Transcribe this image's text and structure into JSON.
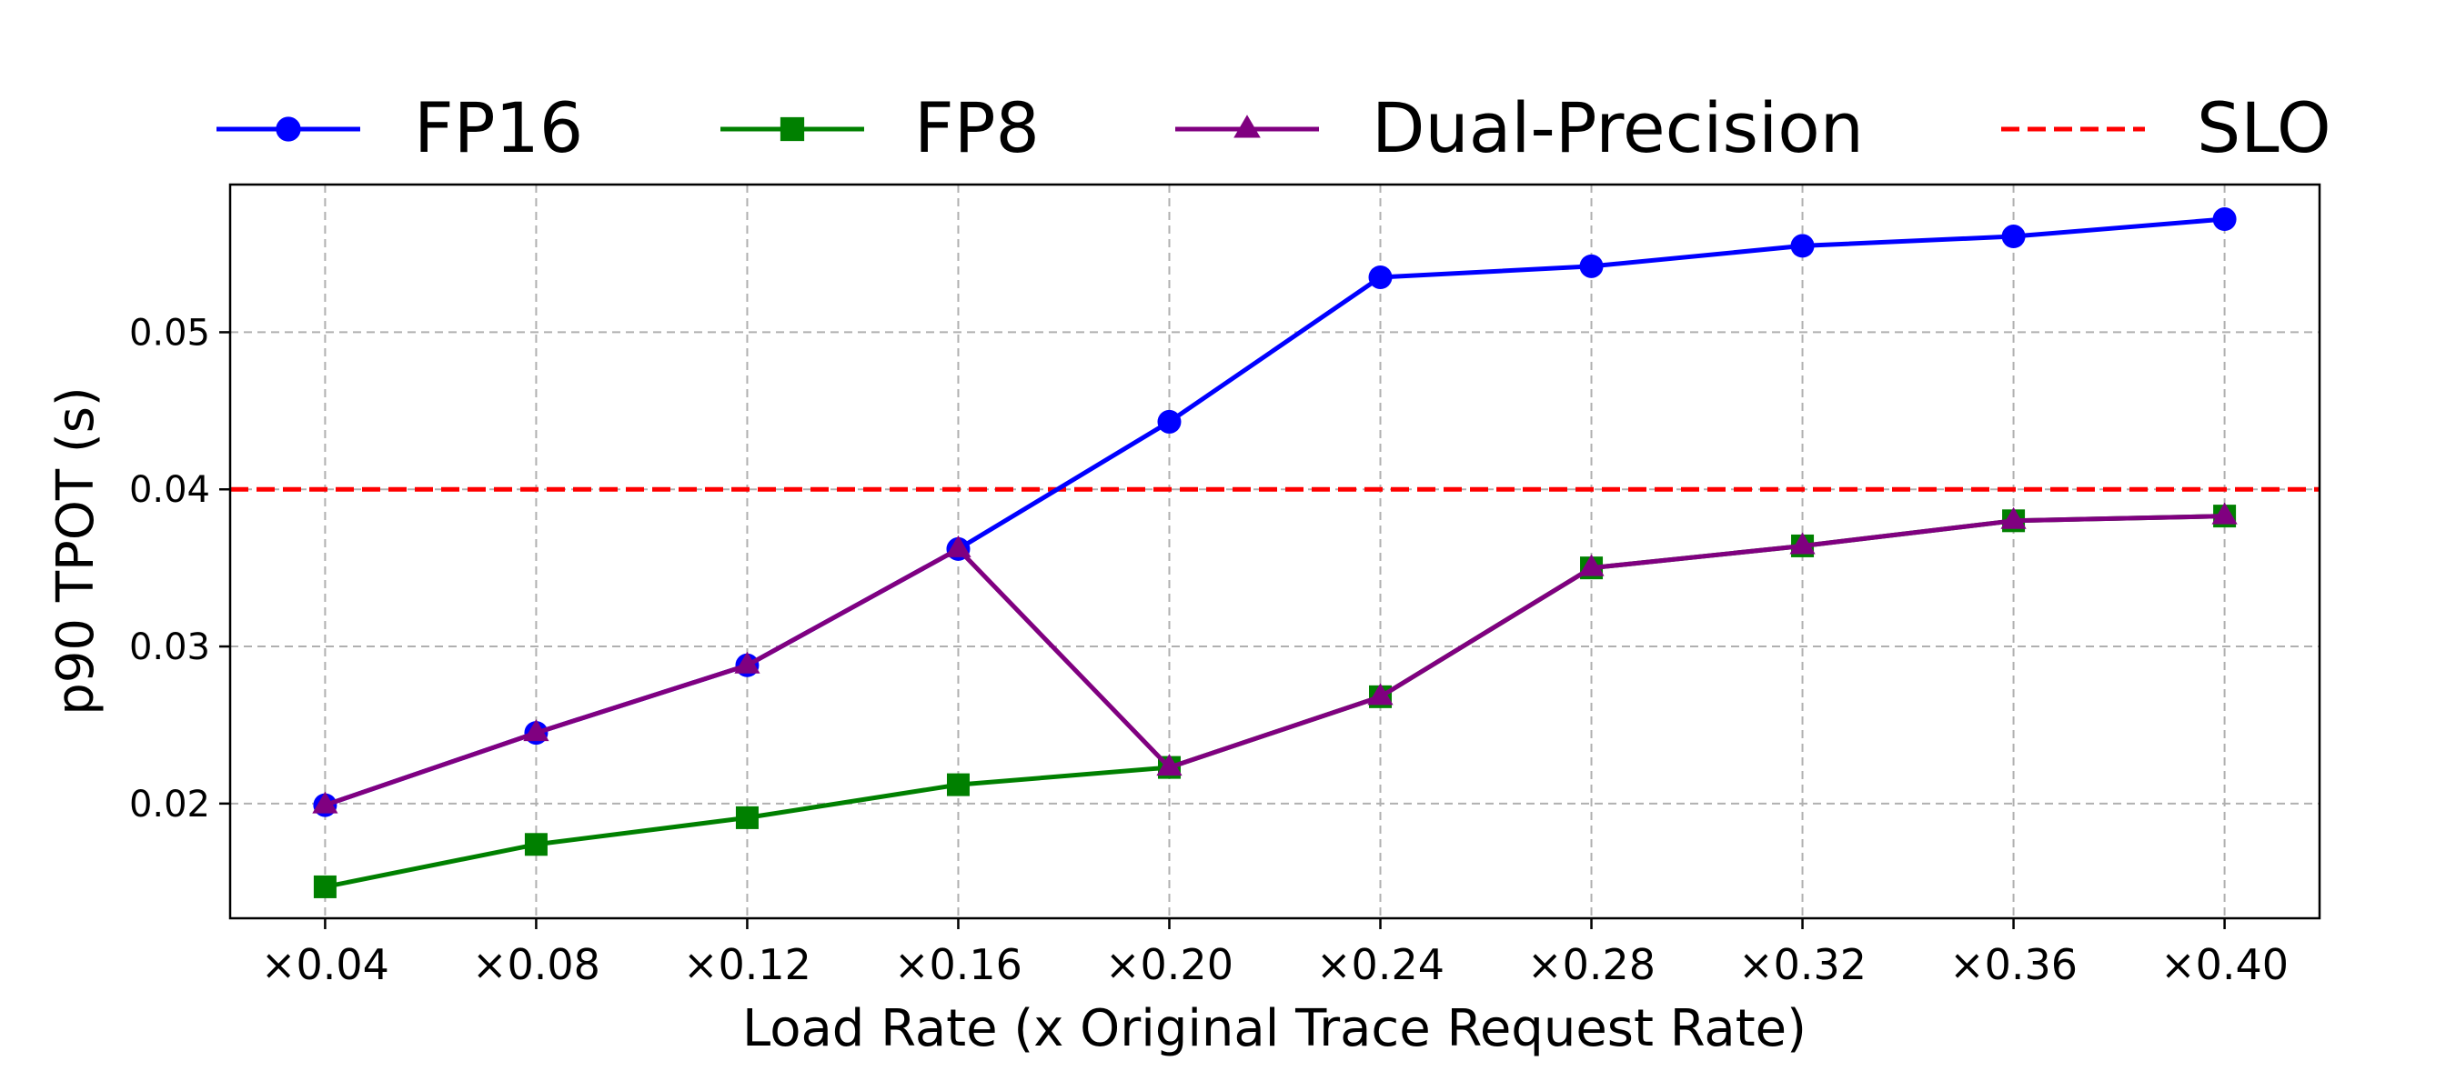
{
  "chart_data": {
    "type": "line",
    "title": "",
    "xlabel": "Load Rate (x Original Trace Request Rate)",
    "ylabel": "p90 TPOT (s)",
    "categories": [
      "×0.04",
      "×0.08",
      "×0.12",
      "×0.16",
      "×0.20",
      "×0.24",
      "×0.28",
      "×0.32",
      "×0.36",
      "×0.40"
    ],
    "x": [
      0.04,
      0.08,
      0.12,
      0.16,
      0.2,
      0.24,
      0.28,
      0.32,
      0.36,
      0.4
    ],
    "xlim": [
      0.022,
      0.418
    ],
    "ylim": [
      0.0127,
      0.0594
    ],
    "yticks": [
      0.02,
      0.03,
      0.04,
      0.05
    ],
    "ytick_labels": [
      "0.02",
      "0.03",
      "0.04",
      "0.05"
    ],
    "grid": true,
    "legend_position": "top, outside plot",
    "series": [
      {
        "name": "FP16",
        "color": "#0000ff",
        "marker": "circle",
        "values": [
          0.0199,
          0.0245,
          0.0288,
          0.0362,
          0.0443,
          0.0535,
          0.0542,
          0.0555,
          0.0561,
          0.0572
        ]
      },
      {
        "name": "FP8",
        "color": "#008000",
        "marker": "square",
        "values": [
          0.0147,
          0.0174,
          0.0191,
          0.0212,
          0.0223,
          0.0268,
          0.035,
          0.0364,
          0.038,
          0.0383
        ]
      },
      {
        "name": "Dual-Precision",
        "color": "#800080",
        "marker": "triangle",
        "values": [
          0.0199,
          0.0245,
          0.0288,
          0.0362,
          0.0223,
          0.0268,
          0.035,
          0.0364,
          0.038,
          0.0383
        ]
      }
    ],
    "reference_lines": [
      {
        "name": "SLO",
        "color": "#ff0000",
        "style": "dashed",
        "y": 0.04
      }
    ]
  }
}
